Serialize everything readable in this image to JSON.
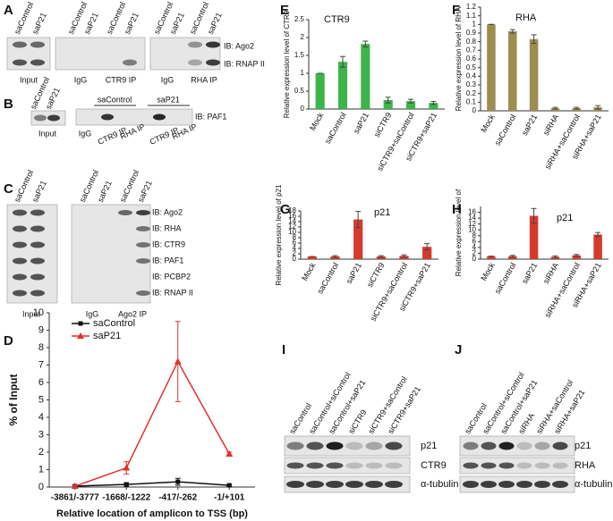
{
  "panel_letters": [
    "A",
    "B",
    "C",
    "D",
    "E",
    "F",
    "G",
    "H",
    "I",
    "J"
  ],
  "blots": {
    "A": {
      "lanes": [
        "saControl",
        "saP21",
        "saControl",
        "saP21",
        "saControl",
        "saP21",
        "saControl",
        "saP21",
        "saControl",
        "saP21"
      ],
      "groups": [
        "Input",
        "IgG",
        "CTR9 IP",
        "IgG",
        "RHA IP"
      ],
      "probes": [
        "IB: Ago2",
        "IB: RNAP II"
      ]
    },
    "B": {
      "lanes": [
        "saControl",
        "saP21"
      ],
      "conditions": [
        "saControl",
        "saP21"
      ],
      "groups": [
        "Input",
        "IgG",
        "CTR9 IP",
        "RHA IP",
        "CTR9 IP",
        "RHA IP"
      ],
      "probes": [
        "IB: PAF1"
      ]
    },
    "C": {
      "lanes": [
        "saControl",
        "saP21",
        "saControl",
        "saP21",
        "saControl",
        "saP21"
      ],
      "groups": [
        "Input",
        "IgG",
        "Ago2 IP"
      ],
      "probes": [
        "IB: Ago2",
        "IB: RHA",
        "IB: CTR9",
        "IB: PAF1",
        "IB: PCBP2",
        "IB: RNAP II"
      ]
    },
    "I": {
      "lanes": [
        "saControl",
        "saControl+siControl",
        "saControl+saP21",
        "siCTR9",
        "siCTR9+saControl",
        "siCTR9+saP21"
      ],
      "probes": [
        "p21",
        "CTR9",
        "α-tubulin"
      ]
    },
    "J": {
      "lanes": [
        "saControl",
        "saControl+siControl",
        "saControl+saP21",
        "siRHA",
        "siRHA+saControl",
        "siRHA+saP21"
      ],
      "probes": [
        "p21",
        "RHA",
        "α-tubulin"
      ]
    }
  },
  "chart_data": [
    {
      "type": "bar",
      "title": "CTR9",
      "y_label": "Relative expression level of CTR9",
      "categories": [
        "Mock",
        "saControl",
        "saP21",
        "siCTR9",
        "siCTR9+saControl",
        "siCTR9+saP21"
      ],
      "values": [
        1,
        1.32,
        1.82,
        0.25,
        0.22,
        0.17
      ],
      "errors": [
        0,
        0.15,
        0.08,
        0.08,
        0.05,
        0.04
      ],
      "color": "#3cb54a",
      "ylim": [
        0,
        2.5
      ],
      "yticks": [
        0,
        0.5,
        1,
        1.5,
        2,
        2.5
      ]
    },
    {
      "type": "bar",
      "title": "RHA",
      "y_label": "Relative expression level of RHA",
      "categories": [
        "Mock",
        "saControl",
        "saP21",
        "siRHA",
        "siRHA+saControl",
        "siRHA+saP21"
      ],
      "values": [
        1,
        0.92,
        0.83,
        0.03,
        0.03,
        0.04
      ],
      "errors": [
        0,
        0.02,
        0.05,
        0.01,
        0.01,
        0.02
      ],
      "color": "#9c8d50",
      "ylim": [
        0,
        1.2
      ],
      "yticks": [
        0,
        0.1,
        0.2,
        0.3,
        0.4,
        0.5,
        0.6,
        0.7,
        0.8,
        0.9,
        1,
        1.1,
        1.2
      ]
    },
    {
      "type": "bar",
      "title": "p21",
      "y_label": "Relative expression level of p21",
      "categories": [
        "Mock",
        "saControl",
        "saP21",
        "siCTR9",
        "siCTR9+saControl",
        "siCTR9+saP21"
      ],
      "values": [
        1,
        1,
        14.8,
        1,
        1.2,
        4.6
      ],
      "errors": [
        0,
        0.3,
        3,
        0.3,
        0.4,
        1.2
      ],
      "color": "#d63a2e",
      "ylim": [
        0,
        18
      ],
      "yticks": [
        0,
        2,
        4,
        6,
        8,
        10,
        12,
        14,
        16,
        18
      ]
    },
    {
      "type": "bar",
      "title": "p21",
      "y_label": "Relative expression level of",
      "categories": [
        "Mock",
        "saControl",
        "saP21",
        "siRHA",
        "siRHA+saControl",
        "siRHA+saP21"
      ],
      "values": [
        1,
        1,
        14.8,
        0.8,
        1.3,
        8.4
      ],
      "errors": [
        0,
        0.3,
        2.5,
        0.3,
        0.3,
        0.7
      ],
      "color": "#d63a2e",
      "ylim": [
        0,
        18
      ],
      "yticks": [
        0,
        2,
        4,
        6,
        8,
        10,
        12,
        14,
        16
      ]
    },
    {
      "type": "line",
      "x_label": "Relative location of amplicon to TSS (bp)",
      "y_label": "% of Input",
      "categories": [
        "-3861/-3777",
        "-1668/-1222",
        "-417/-262",
        "-1/+101"
      ],
      "series": [
        {
          "name": "saControl",
          "color": "#111111",
          "marker": "square",
          "values": [
            0.05,
            0.15,
            0.3,
            0.1
          ],
          "errors": [
            0.05,
            0.1,
            0.2,
            0.05
          ]
        },
        {
          "name": "saP21",
          "color": "#e03030",
          "marker": "triangle",
          "values": [
            0.05,
            1.1,
            7.2,
            1.9
          ],
          "errors": [
            0,
            0.35,
            2.3,
            0.1
          ]
        }
      ],
      "ylim": [
        0,
        10
      ],
      "yticks": [
        0,
        1,
        2,
        3,
        4,
        5,
        6,
        7,
        8,
        9,
        10
      ],
      "legend": "upper left"
    }
  ]
}
